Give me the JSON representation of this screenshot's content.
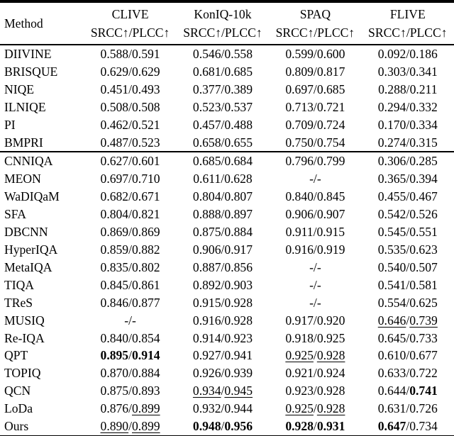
{
  "table": {
    "method_header": "Method",
    "subheader": "SRCC↑/PLCC↑",
    "datasets": [
      "CLIVE",
      "KonIQ-10k",
      "SPAQ",
      "FLIVE"
    ],
    "missing_marker": "-/-",
    "text_color": "#000000",
    "background_color": "#ffffff",
    "groups": [
      {
        "name": "traditional-methods",
        "rows": [
          {
            "method": "DIIVINE",
            "cells": [
              {
                "s": "0.588",
                "p": "0.591"
              },
              {
                "s": "0.546",
                "p": "0.558"
              },
              {
                "s": "0.599",
                "p": "0.600"
              },
              {
                "s": "0.092",
                "p": "0.186"
              }
            ]
          },
          {
            "method": "BRISQUE",
            "cells": [
              {
                "s": "0.629",
                "p": "0.629"
              },
              {
                "s": "0.681",
                "p": "0.685"
              },
              {
                "s": "0.809",
                "p": "0.817"
              },
              {
                "s": "0.303",
                "p": "0.341"
              }
            ]
          },
          {
            "method": "NIQE",
            "cells": [
              {
                "s": "0.451",
                "p": "0.493"
              },
              {
                "s": "0.377",
                "p": "0.389"
              },
              {
                "s": "0.697",
                "p": "0.685"
              },
              {
                "s": "0.288",
                "p": "0.211"
              }
            ]
          },
          {
            "method": "ILNIQE",
            "cells": [
              {
                "s": "0.508",
                "p": "0.508"
              },
              {
                "s": "0.523",
                "p": "0.537"
              },
              {
                "s": "0.713",
                "p": "0.721"
              },
              {
                "s": "0.294",
                "p": "0.332"
              }
            ]
          },
          {
            "method": "PI",
            "cells": [
              {
                "s": "0.462",
                "p": "0.521"
              },
              {
                "s": "0.457",
                "p": "0.488"
              },
              {
                "s": "0.709",
                "p": "0.724"
              },
              {
                "s": "0.170",
                "p": "0.334"
              }
            ]
          },
          {
            "method": "BMPRI",
            "cells": [
              {
                "s": "0.487",
                "p": "0.523"
              },
              {
                "s": "0.658",
                "p": "0.655"
              },
              {
                "s": "0.750",
                "p": "0.754"
              },
              {
                "s": "0.274",
                "p": "0.315"
              }
            ]
          }
        ]
      },
      {
        "name": "learning-based-methods",
        "rows": [
          {
            "method": "CNNIQA",
            "cells": [
              {
                "s": "0.627",
                "p": "0.601"
              },
              {
                "s": "0.685",
                "p": "0.684"
              },
              {
                "s": "0.796",
                "p": "0.799"
              },
              {
                "s": "0.306",
                "p": "0.285"
              }
            ]
          },
          {
            "method": "MEON",
            "cells": [
              {
                "s": "0.697",
                "p": "0.710"
              },
              {
                "s": "0.611",
                "p": "0.628"
              },
              {
                "s": "-",
                "p": "-"
              },
              {
                "s": "0.365",
                "p": "0.394"
              }
            ]
          },
          {
            "method": "WaDIQaM",
            "cells": [
              {
                "s": "0.682",
                "p": "0.671"
              },
              {
                "s": "0.804",
                "p": "0.807"
              },
              {
                "s": "0.840",
                "p": "0.845"
              },
              {
                "s": "0.455",
                "p": "0.467"
              }
            ]
          },
          {
            "method": "SFA",
            "cells": [
              {
                "s": "0.804",
                "p": "0.821"
              },
              {
                "s": "0.888",
                "p": "0.897"
              },
              {
                "s": "0.906",
                "p": "0.907"
              },
              {
                "s": "0.542",
                "p": "0.526"
              }
            ]
          },
          {
            "method": "DBCNN",
            "cells": [
              {
                "s": "0.869",
                "p": "0.869"
              },
              {
                "s": "0.875",
                "p": "0.884"
              },
              {
                "s": "0.911",
                "p": "0.915"
              },
              {
                "s": "0.545",
                "p": "0.551"
              }
            ]
          },
          {
            "method": "HyperIQA",
            "cells": [
              {
                "s": "0.859",
                "p": "0.882"
              },
              {
                "s": "0.906",
                "p": "0.917"
              },
              {
                "s": "0.916",
                "p": "0.919"
              },
              {
                "s": "0.535",
                "p": "0.623"
              }
            ]
          },
          {
            "method": "MetaIQA",
            "cells": [
              {
                "s": "0.835",
                "p": "0.802"
              },
              {
                "s": "0.887",
                "p": "0.856"
              },
              {
                "s": "-",
                "p": "-"
              },
              {
                "s": "0.540",
                "p": "0.507"
              }
            ]
          },
          {
            "method": "TIQA",
            "cells": [
              {
                "s": "0.845",
                "p": "0.861"
              },
              {
                "s": "0.892",
                "p": "0.903"
              },
              {
                "s": "-",
                "p": "-"
              },
              {
                "s": "0.541",
                "p": "0.581"
              }
            ]
          },
          {
            "method": "TReS",
            "cells": [
              {
                "s": "0.846",
                "p": "0.877"
              },
              {
                "s": "0.915",
                "p": "0.928"
              },
              {
                "s": "-",
                "p": "-"
              },
              {
                "s": "0.554",
                "p": "0.625"
              }
            ]
          },
          {
            "method": "MUSIQ",
            "cells": [
              {
                "s": "-",
                "p": "-"
              },
              {
                "s": "0.916",
                "p": "0.928"
              },
              {
                "s": "0.917",
                "p": "0.920"
              },
              {
                "s": "0.646",
                "p": "0.739",
                "sf": "u",
                "pf": "u"
              }
            ]
          },
          {
            "method": "Re-IQA",
            "cells": [
              {
                "s": "0.840",
                "p": "0.854"
              },
              {
                "s": "0.914",
                "p": "0.923"
              },
              {
                "s": "0.918",
                "p": "0.925"
              },
              {
                "s": "0.645",
                "p": "0.733"
              }
            ]
          },
          {
            "method": "QPT",
            "cells": [
              {
                "s": "0.895",
                "p": "0.914",
                "sf": "b",
                "pf": "b"
              },
              {
                "s": "0.927",
                "p": "0.941"
              },
              {
                "s": "0.925",
                "p": "0.928",
                "sf": "u",
                "pf": "u"
              },
              {
                "s": "0.610",
                "p": "0.677"
              }
            ]
          },
          {
            "method": "TOPIQ",
            "cells": [
              {
                "s": "0.870",
                "p": "0.884"
              },
              {
                "s": "0.926",
                "p": "0.939"
              },
              {
                "s": "0.921",
                "p": "0.924"
              },
              {
                "s": "0.633",
                "p": "0.722"
              }
            ]
          },
          {
            "method": "QCN",
            "cells": [
              {
                "s": "0.875",
                "p": "0.893"
              },
              {
                "s": "0.934",
                "p": "0.945",
                "sf": "u",
                "pf": "u"
              },
              {
                "s": "0.923",
                "p": "0.928"
              },
              {
                "s": "0.644",
                "p": "0.741",
                "pf": "b"
              }
            ]
          },
          {
            "method": "LoDa",
            "cells": [
              {
                "s": "0.876",
                "p": "0.899",
                "pf": "u"
              },
              {
                "s": "0.932",
                "p": "0.944"
              },
              {
                "s": "0.925",
                "p": "0.928",
                "sf": "u",
                "pf": "u"
              },
              {
                "s": "0.631",
                "p": "0.726"
              }
            ]
          },
          {
            "method": "Ours",
            "cells": [
              {
                "s": "0.890",
                "p": "0.899",
                "sf": "u",
                "pf": "u"
              },
              {
                "s": "0.948",
                "p": "0.956",
                "sf": "b",
                "pf": "b"
              },
              {
                "s": "0.928",
                "p": "0.931",
                "sf": "b",
                "pf": "b"
              },
              {
                "s": "0.647",
                "p": "0.734",
                "sf": "b"
              }
            ]
          }
        ]
      }
    ]
  }
}
